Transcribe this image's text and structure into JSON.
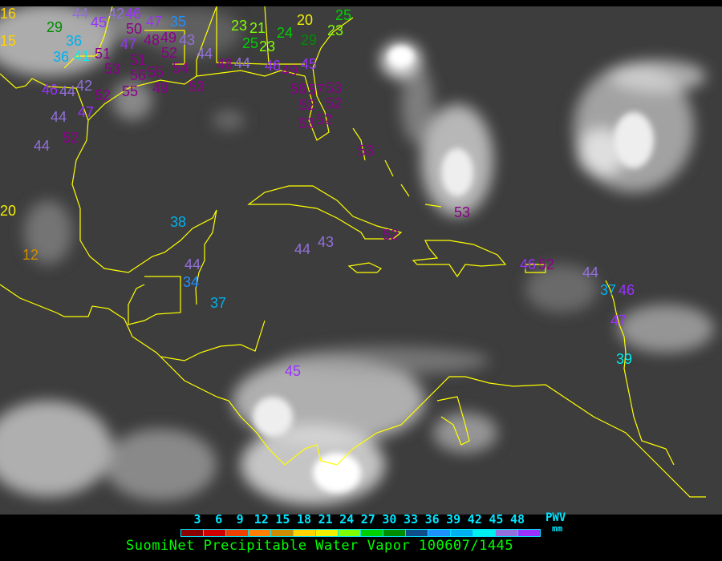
{
  "title": "SuomiNet Precipitable Water Vapor 100607/1445",
  "legend": {
    "unit_label": "PWV",
    "unit": "mm",
    "ticks": [
      "3",
      "6",
      "9",
      "12",
      "15",
      "18",
      "21",
      "24",
      "27",
      "30",
      "33",
      "36",
      "39",
      "42",
      "45",
      "48"
    ],
    "colors": [
      "#8b0000",
      "#d00000",
      "#f04000",
      "#ff8000",
      "#d08c00",
      "#ffd200",
      "#f0f000",
      "#80ff00",
      "#00d000",
      "#008c00",
      "#104e8b",
      "#1e90ff",
      "#00b0ee",
      "#00eeee",
      "#9370db",
      "#9b30ff",
      "#8b008b"
    ]
  },
  "coastline_color": "#ffff00",
  "stations": [
    "16",
    "29",
    "44",
    "45",
    "42",
    "46",
    "50",
    "47",
    "35",
    "15",
    "36",
    "41",
    "36",
    "51",
    "47",
    "48",
    "49",
    "43",
    "51",
    "52",
    "53",
    "56",
    "55",
    "54",
    "44",
    "49",
    "48",
    "44",
    "46",
    "45",
    "49",
    "23",
    "21",
    "25",
    "23",
    "24",
    "29",
    "20",
    "23",
    "25",
    "46",
    "44",
    "42",
    "52",
    "47",
    "44",
    "52",
    "44",
    "55",
    "53",
    "56",
    "57",
    "53",
    "52",
    "52",
    "52",
    "53",
    "20",
    "12",
    "38",
    "44",
    "34",
    "37",
    "44",
    "43",
    "52",
    "53",
    "53",
    "46",
    "52",
    "44",
    "37",
    "46",
    "47",
    "39",
    "45"
  ]
}
